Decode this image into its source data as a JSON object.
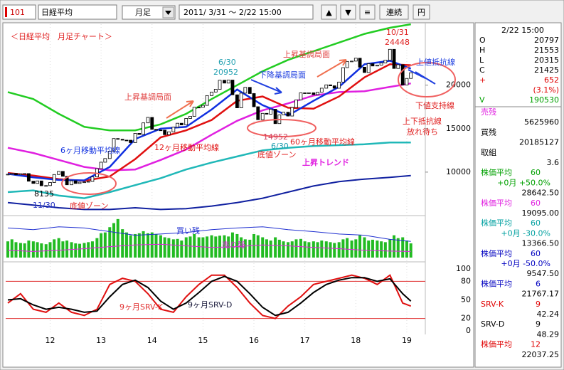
{
  "toolbar": {
    "code": "101",
    "name": "日経平均",
    "period": "月足",
    "range": "2011/ 3/31 ～ 2/22 15:00",
    "buttons": [
      "▲",
      "▼",
      "≡",
      "連続",
      "円"
    ]
  },
  "chart_data": [
    {
      "type": "candlestick",
      "title": "＜日経平均　月足チャート＞",
      "x": [
        2011.17,
        2011.25,
        2011.33,
        2011.42,
        2011.5,
        2011.58,
        2011.67,
        2011.75,
        2011.83,
        2011.92,
        2012.0,
        2012.08,
        2012.17,
        2012.25,
        2012.33,
        2012.42,
        2012.5,
        2012.58,
        2012.67,
        2012.75,
        2012.83,
        2012.92,
        2013.0,
        2013.08,
        2013.17,
        2013.25,
        2013.33,
        2013.42,
        2013.5,
        2013.58,
        2013.67,
        2013.75,
        2013.83,
        2013.92,
        2014.0,
        2014.08,
        2014.17,
        2014.25,
        2014.33,
        2014.42,
        2014.5,
        2014.58,
        2014.67,
        2014.75,
        2014.83,
        2014.92,
        2015.0,
        2015.08,
        2015.17,
        2015.25,
        2015.33,
        2015.42,
        2015.5,
        2015.58,
        2015.67,
        2015.75,
        2015.83,
        2015.92,
        2016.0,
        2016.08,
        2016.17,
        2016.25,
        2016.33,
        2016.42,
        2016.5,
        2016.58,
        2016.67,
        2016.75,
        2016.83,
        2016.92,
        2017.0,
        2017.08,
        2017.17,
        2017.25,
        2017.33,
        2017.42,
        2017.5,
        2017.58,
        2017.67,
        2017.75,
        2017.83,
        2017.92,
        2018.0,
        2018.08,
        2018.17,
        2018.25,
        2018.33,
        2018.42,
        2018.5,
        2018.58,
        2018.67,
        2018.75,
        2018.83,
        2018.92,
        2019.0,
        2019.08
      ],
      "values": [
        9755,
        9849,
        9693,
        9816,
        9833,
        8955,
        8700,
        8988,
        8434,
        8455,
        8803,
        9723,
        10084,
        9521,
        8543,
        9007,
        8695,
        8840,
        8870,
        8928,
        9446,
        10395,
        11139,
        11559,
        12398,
        13861,
        13775,
        13677,
        13668,
        13389,
        14456,
        14328,
        15662,
        16291,
        14915,
        14841,
        14828,
        14304,
        14632,
        15162,
        15621,
        15425,
        16174,
        16414,
        17460,
        17451,
        17674,
        18798,
        19207,
        19520,
        20563,
        20236,
        20585,
        18890,
        17388,
        19083,
        19747,
        19034,
        17518,
        16027,
        16759,
        16666,
        17235,
        15576,
        16569,
        16887,
        16450,
        17425,
        18308,
        19114,
        19041,
        19119,
        18909,
        19197,
        19651,
        20033,
        19925,
        19646,
        20356,
        22012,
        22725,
        22765,
        23098,
        22068,
        21454,
        22468,
        22202,
        22305,
        22554,
        22865,
        24120,
        21920,
        22351,
        20015,
        20773,
        21425
      ],
      "line_x": [
        2011.17,
        2011.67,
        2012.17,
        2012.67,
        2013.17,
        2013.67,
        2014.17,
        2014.67,
        2015.17,
        2015.67,
        2016.17,
        2016.67,
        2017.17,
        2017.67,
        2018.17,
        2018.67,
        2019.08
      ],
      "lines": [
        {
          "color": "#22cc22",
          "values": [
            19200,
            18400,
            16700,
            15200,
            14800,
            14800,
            15500,
            16700,
            18400,
            20000,
            21600,
            22900,
            23900,
            24900,
            25900,
            26600,
            27000
          ]
        },
        {
          "color": "#20b8b8",
          "values": [
            7700,
            7900,
            7300,
            7000,
            7700,
            8500,
            9300,
            10300,
            11100,
            11800,
            12500,
            12800,
            13000,
            13100,
            13200,
            13400,
            13400
          ]
        },
        {
          "color": "#1020a0",
          "values": [
            6500,
            6200,
            5900,
            5700,
            5700,
            5900,
            5700,
            5800,
            6100,
            6500,
            7000,
            7700,
            8400,
            8900,
            9200,
            9400,
            9600
          ]
        },
        {
          "name": "60ヶ月移動平均線",
          "color": "#e020e0",
          "values": [
            12800,
            12200,
            11400,
            10600,
            10200,
            10300,
            11400,
            12600,
            14300,
            15900,
            17100,
            17900,
            18800,
            19200,
            19300,
            19800,
            20200
          ]
        },
        {
          "name": "12ヶ月移動平均線",
          "color": "#e01010",
          "values": [
            9900,
            9600,
            9200,
            9000,
            9500,
            11500,
            14000,
            14800,
            16000,
            18200,
            18700,
            17400,
            17300,
            18700,
            20900,
            22400,
            22300
          ]
        },
        {
          "name": "6ヶ月移動平均線",
          "color": "#1030e0",
          "values": [
            9800,
            9400,
            9100,
            9050,
            10600,
            13800,
            15000,
            15200,
            17200,
            19500,
            17700,
            16500,
            18200,
            19800,
            22400,
            22800,
            21900
          ]
        }
      ],
      "xlim": [
        2011.1,
        2019.28
      ],
      "ylim": [
        5000,
        27500
      ],
      "yticks": [
        10000,
        15000,
        20000
      ],
      "xticks": [
        {
          "value": 2012,
          "label": "12"
        },
        {
          "value": 2013,
          "label": "13"
        },
        {
          "value": 2014,
          "label": "14"
        },
        {
          "value": 2015,
          "label": "15"
        },
        {
          "value": 2016,
          "label": "16"
        },
        {
          "value": 2017,
          "label": "17"
        },
        {
          "value": 2018,
          "label": "18"
        },
        {
          "value": 2019,
          "label": "19"
        }
      ],
      "annotations": [
        "上昇基調局面",
        "上昇基調局面",
        "下降基調局面",
        "上値抵抗線",
        "下値支持線",
        "上下抵抗線",
        "放れ待ち",
        "6/30",
        "20952",
        "10/31",
        "24448",
        "14952",
        "6/30",
        "8135",
        "11/30",
        "底値ゾーン",
        "底値ゾーン",
        "上昇トレンド"
      ]
    },
    {
      "type": "bar",
      "color": "#22bb22",
      "ylim": [
        0,
        100
      ],
      "values": [
        40,
        45,
        38,
        36,
        35,
        42,
        40,
        38,
        35,
        33,
        38,
        45,
        48,
        40,
        42,
        38,
        35,
        34,
        36,
        38,
        40,
        48,
        60,
        62,
        75,
        85,
        95,
        70,
        62,
        55,
        58,
        60,
        65,
        60,
        62,
        58,
        55,
        50,
        48,
        45,
        46,
        42,
        50,
        52,
        58,
        50,
        50,
        52,
        55,
        52,
        54,
        55,
        52,
        62,
        58,
        50,
        45,
        44,
        58,
        55,
        50,
        45,
        42,
        50,
        44,
        40,
        38,
        40,
        45,
        46,
        40,
        38,
        40,
        38,
        42,
        40,
        38,
        36,
        38,
        45,
        48,
        42,
        45,
        55,
        50,
        42,
        44,
        42,
        40,
        38,
        45,
        55,
        48,
        50,
        42,
        35
      ],
      "series": [
        {
          "name": "買い残",
          "color": "#2030d0",
          "values": [
            73,
            69,
            76,
            73,
            64,
            55,
            58,
            62,
            69,
            73,
            76,
            69,
            64,
            58,
            55,
            45,
            40
          ]
        },
        {
          "name": "売り残",
          "color": "#e020e0",
          "values": [
            18,
            15,
            18,
            22,
            27,
            31,
            33,
            29,
            25,
            27,
            31,
            29,
            25,
            22,
            18,
            16,
            15
          ]
        }
      ]
    },
    {
      "type": "line",
      "x": [
        2011.17,
        2011.42,
        2011.67,
        2011.92,
        2012.17,
        2012.42,
        2012.67,
        2012.92,
        2013.17,
        2013.42,
        2013.67,
        2013.92,
        2014.17,
        2014.42,
        2014.67,
        2014.92,
        2015.17,
        2015.42,
        2015.67,
        2015.92,
        2016.17,
        2016.42,
        2016.67,
        2016.92,
        2017.17,
        2017.42,
        2017.67,
        2017.92,
        2018.17,
        2018.42,
        2018.67,
        2018.92,
        2019.08
      ],
      "series": [
        {
          "name": "9ヶ月SRV-K",
          "color": "#e01010",
          "values": [
            45,
            60,
            35,
            30,
            45,
            30,
            25,
            35,
            75,
            85,
            80,
            60,
            35,
            30,
            55,
            75,
            90,
            90,
            70,
            45,
            25,
            20,
            40,
            55,
            75,
            80,
            85,
            90,
            85,
            75,
            90,
            45,
            40
          ]
        },
        {
          "name": "9ヶ月SRV-D",
          "color": "#000000",
          "values": [
            50,
            52,
            42,
            35,
            38,
            35,
            30,
            32,
            55,
            75,
            82,
            70,
            48,
            35,
            45,
            62,
            80,
            88,
            80,
            60,
            38,
            25,
            30,
            45,
            62,
            75,
            82,
            86,
            86,
            80,
            84,
            60,
            48
          ]
        }
      ],
      "ylim": [
        0,
        100
      ],
      "yticks": [
        0,
        20,
        50,
        80,
        100
      ],
      "hlines": [
        20,
        80
      ]
    }
  ],
  "panel": {
    "time": "2/22 15:00",
    "quote": [
      {
        "label": "O",
        "value": "20797"
      },
      {
        "label": "H",
        "value": "21553"
      },
      {
        "label": "L",
        "value": "20315"
      },
      {
        "label": "C",
        "value": "21425"
      },
      {
        "label": "+",
        "value": "652",
        "color": "#e00000"
      },
      {
        "value": "(3.1%)",
        "color": "#e00000"
      },
      {
        "label": "V",
        "value": "190530",
        "color": "#00a000"
      }
    ],
    "items": [
      {
        "label": "売残",
        "color": "#e020e0",
        "value": "5625960"
      },
      {
        "label": "買残",
        "color": "#000000",
        "value": "20185127"
      },
      {
        "label": "取組",
        "color": "#000000",
        "value": "3.6"
      },
      {
        "label": "株価平均",
        "param": "60",
        "sub": "+0月 +50.0%",
        "color": "#00a000",
        "value": "28642.50"
      },
      {
        "label": "株価平均",
        "param": "60",
        "color": "#e020e0",
        "value": "19095.00"
      },
      {
        "label": "株価平均",
        "param": "60",
        "sub": "+0月 -30.0%",
        "color": "#00a0a0",
        "value": "13366.50"
      },
      {
        "label": "株価平均",
        "param": "60",
        "sub": "+0月 -50.0%",
        "color": "#0000c0",
        "value": "9547.50"
      },
      {
        "label": "株価平均",
        "param": "6",
        "color": "#0000c0",
        "value": "21767.17"
      },
      {
        "label": "SRV-K",
        "param": "9",
        "color": "#e00000",
        "value": "42.24"
      },
      {
        "label": "SRV-D",
        "param": "9",
        "color": "#000000",
        "value": "48.29"
      },
      {
        "label": "株価平均",
        "param": "12",
        "color": "#e00000",
        "value": "22037.25"
      }
    ]
  }
}
